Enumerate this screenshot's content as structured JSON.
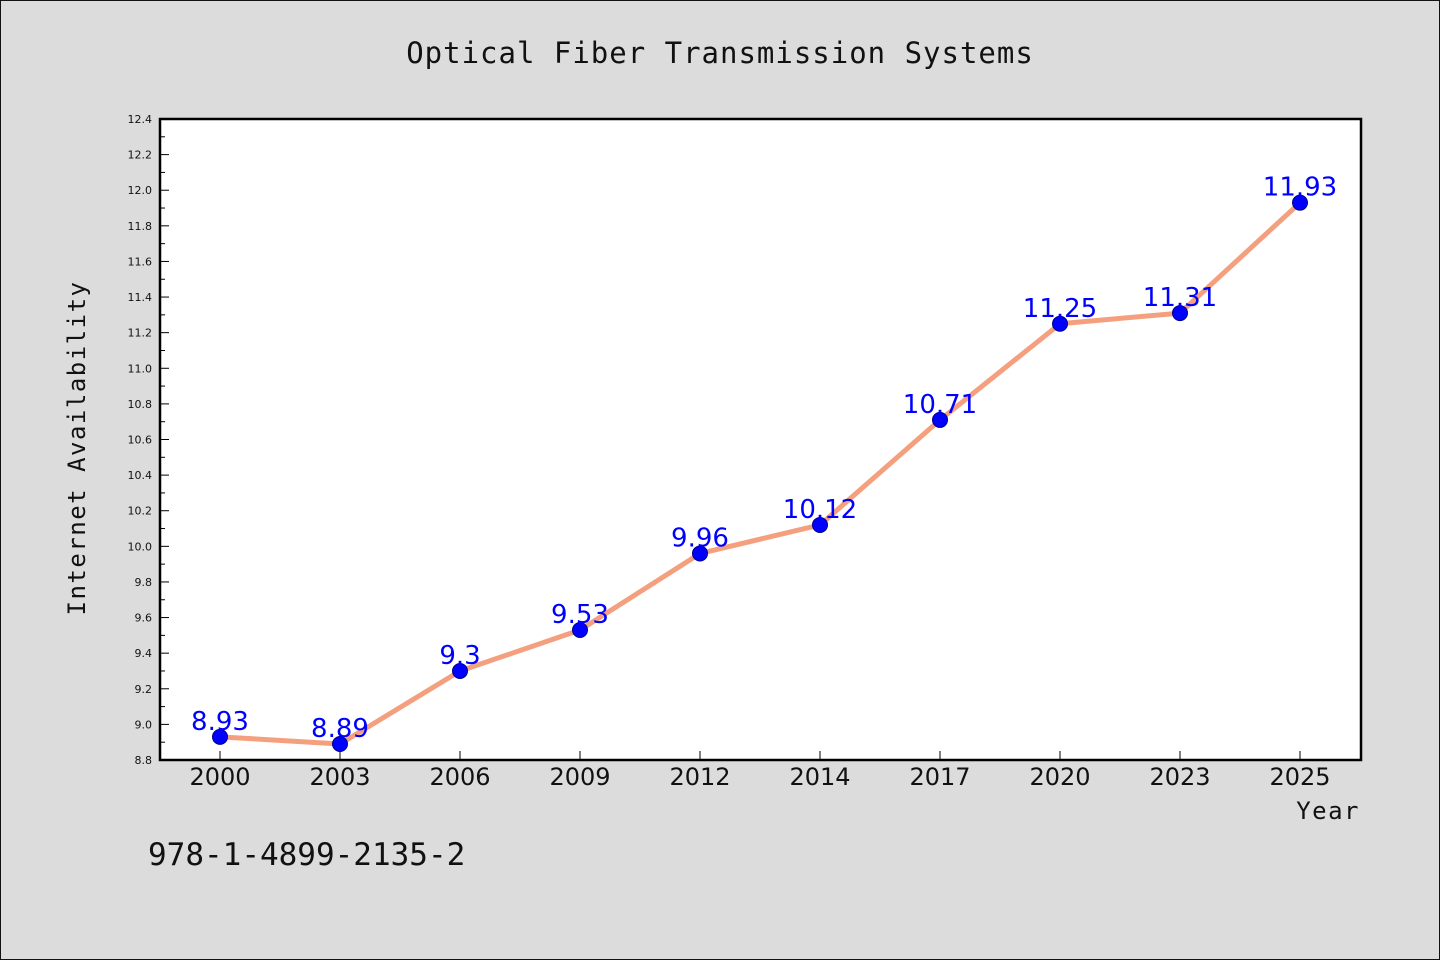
{
  "colors": {
    "background": "#dcdcdc",
    "plot_background": "#ffffff",
    "line": "#f4a07f",
    "marker": "#0000ff",
    "label": "#0000ff"
  },
  "footer": {
    "isbn": "978-1-4899-2135-2"
  },
  "chart_data": {
    "type": "line",
    "title": "Optical Fiber Transmission Systems",
    "xlabel": "Year",
    "ylabel": "Internet Availability",
    "categories": [
      "2000",
      "2003",
      "2006",
      "2009",
      "2012",
      "2014",
      "2017",
      "2020",
      "2023",
      "2025"
    ],
    "series": [
      {
        "values": [
          8.93,
          8.89,
          9.3,
          9.53,
          9.96,
          10.12,
          10.71,
          11.25,
          11.31,
          11.93
        ],
        "data_labels": [
          "8.93",
          "8.89",
          "9.3",
          "9.53",
          "9.96",
          "10.12",
          "10.71",
          "11.25",
          "11.31",
          "11.93"
        ]
      }
    ],
    "ylim": [
      8.8,
      12.4
    ],
    "yticks": [
      "8.8",
      "9.0",
      "9.2",
      "9.4",
      "9.6",
      "9.8",
      "10.0",
      "10.2",
      "10.4",
      "10.6",
      "10.8",
      "11.0",
      "11.2",
      "11.4",
      "11.6",
      "11.8",
      "12.0",
      "12.2",
      "12.4"
    ],
    "grid": false,
    "legend": "none"
  }
}
